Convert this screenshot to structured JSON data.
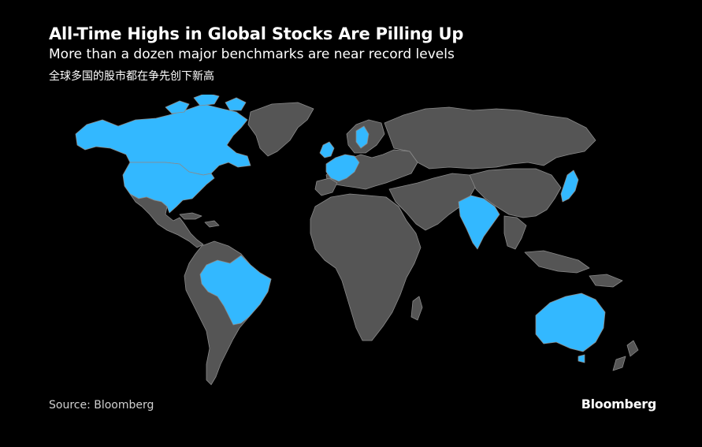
{
  "header": {
    "title": "All-Time Highs in Global Stocks Are Pilling Up",
    "subtitle": "More than a dozen major benchmarks are near record levels",
    "subtitle_cn": "全球多国的股市都在争先创下新高"
  },
  "footer": {
    "source": "Source: Bloomberg",
    "brand": "Bloomberg"
  },
  "colors": {
    "background": "#000000",
    "land_default": "#555555",
    "land_highlight": "#33b8ff",
    "borders": "#8a8a8a"
  },
  "map": {
    "highlighted_regions": [
      "Canada",
      "United States",
      "Brazil",
      "United Kingdom",
      "France",
      "Germany",
      "Netherlands",
      "Sweden",
      "Denmark",
      "India",
      "Japan",
      "Australia"
    ]
  }
}
